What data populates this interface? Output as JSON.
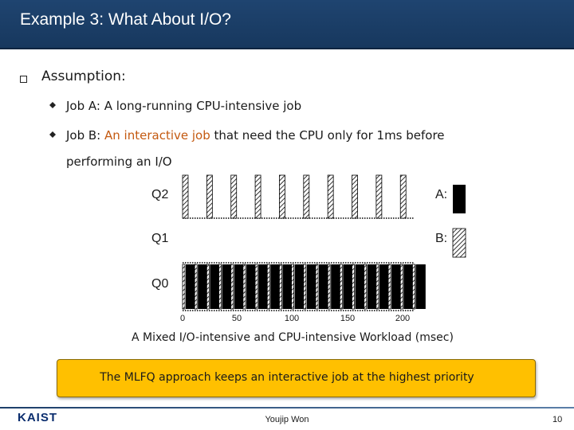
{
  "slide": {
    "title": "Example 3: What About I/O?",
    "assumption_label": "Assumption:",
    "job_a": {
      "name": "Job A:",
      "desc": " A long-running CPU-intensive job"
    },
    "job_b": {
      "name": "Job B:",
      "desc_highlight": " An interactive job",
      "desc_rest": " that need the CPU only for 1ms before",
      "desc_cont": "performing an I/O"
    },
    "callout": "The MLFQ approach keeps an interactive job at the highest priority",
    "footer": {
      "logo": "KAIST",
      "author": "Youjip Won",
      "page": "10"
    }
  },
  "chart_data": {
    "type": "timeline",
    "caption": "A Mixed I/O-intensive and CPU-intensive Workload (msec)",
    "queues": [
      "Q2",
      "Q1",
      "Q0"
    ],
    "x_ticks": [
      0,
      50,
      100,
      150,
      200
    ],
    "xlim": [
      0,
      220
    ],
    "legend": [
      {
        "label": "A:",
        "pattern": "solid-black"
      },
      {
        "label": "B:",
        "pattern": "hatched"
      }
    ],
    "job_b_runs": {
      "queue": "Q0",
      "start": 0,
      "end": 210,
      "period": 11,
      "duration": 1
    },
    "job_a_runs": {
      "queue": "Q0",
      "start": 0,
      "end": 210,
      "period": 11,
      "duration": 10
    }
  },
  "colors": {
    "title_bg": "#1f4470",
    "callout_bg": "#ffc000",
    "highlight": "#c45a11"
  }
}
